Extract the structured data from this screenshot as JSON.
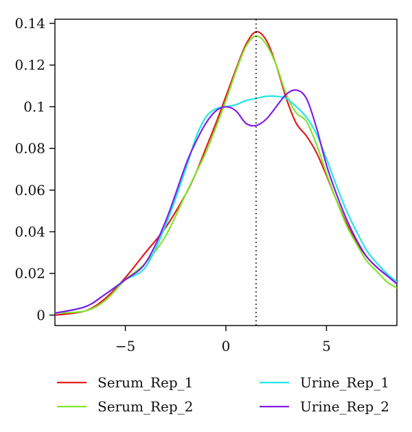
{
  "chart_data": {
    "type": "line",
    "title": "",
    "xlabel": "",
    "ylabel": "",
    "xlim": [
      -8.5,
      8.5
    ],
    "ylim": [
      -0.005,
      0.142
    ],
    "x_ticks": [
      -5,
      0,
      5
    ],
    "x_tick_labels": [
      "−5",
      "0",
      "5"
    ],
    "y_ticks": [
      0,
      0.02,
      0.04,
      0.06,
      0.08,
      0.1,
      0.12,
      0.14
    ],
    "y_tick_labels": [
      "0",
      "0.02",
      "0.04",
      "0.06",
      "0.08",
      "0.1",
      "0.12",
      "0.14"
    ],
    "grid": false,
    "legend_position": "bottom",
    "reference_line": {
      "x": 1.5,
      "style": "dotted"
    },
    "series": [
      {
        "name": "Serum_Rep_1",
        "color": "#e41a1c",
        "points": [
          [
            -8.5,
            0.0
          ],
          [
            -7,
            0.002
          ],
          [
            -6,
            0.008
          ],
          [
            -5,
            0.018
          ],
          [
            -4,
            0.03
          ],
          [
            -3,
            0.042
          ],
          [
            -2,
            0.058
          ],
          [
            -1.5,
            0.068
          ],
          [
            -1,
            0.08
          ],
          [
            -0.5,
            0.092
          ],
          [
            0,
            0.105
          ],
          [
            0.5,
            0.118
          ],
          [
            1,
            0.13
          ],
          [
            1.5,
            0.136
          ],
          [
            2,
            0.132
          ],
          [
            2.5,
            0.12
          ],
          [
            3,
            0.104
          ],
          [
            3.5,
            0.092
          ],
          [
            4,
            0.086
          ],
          [
            4.5,
            0.078
          ],
          [
            5,
            0.067
          ],
          [
            5.5,
            0.055
          ],
          [
            6,
            0.044
          ],
          [
            6.5,
            0.035
          ],
          [
            7,
            0.028
          ],
          [
            7.5,
            0.023
          ],
          [
            8,
            0.019
          ],
          [
            8.5,
            0.015
          ]
        ]
      },
      {
        "name": "Serum_Rep_2",
        "color": "#7fe52c",
        "points": [
          [
            -8.5,
            0.001
          ],
          [
            -7,
            0.002
          ],
          [
            -6,
            0.007
          ],
          [
            -5,
            0.017
          ],
          [
            -4,
            0.025
          ],
          [
            -3,
            0.038
          ],
          [
            -2,
            0.058
          ],
          [
            -1.5,
            0.068
          ],
          [
            -1,
            0.078
          ],
          [
            -0.5,
            0.09
          ],
          [
            0,
            0.103
          ],
          [
            0.5,
            0.117
          ],
          [
            1,
            0.129
          ],
          [
            1.5,
            0.134
          ],
          [
            2,
            0.13
          ],
          [
            2.5,
            0.12
          ],
          [
            3,
            0.106
          ],
          [
            3.5,
            0.097
          ],
          [
            4,
            0.093
          ],
          [
            4.5,
            0.082
          ],
          [
            5,
            0.068
          ],
          [
            5.5,
            0.055
          ],
          [
            6,
            0.043
          ],
          [
            6.5,
            0.034
          ],
          [
            7,
            0.026
          ],
          [
            7.5,
            0.021
          ],
          [
            8,
            0.016
          ],
          [
            8.5,
            0.013
          ]
        ]
      },
      {
        "name": "Urine_Rep_1",
        "color": "#22e6e6",
        "points": [
          [
            -8.5,
            0.001
          ],
          [
            -7,
            0.004
          ],
          [
            -6,
            0.01
          ],
          [
            -5,
            0.017
          ],
          [
            -4,
            0.023
          ],
          [
            -3,
            0.043
          ],
          [
            -2,
            0.07
          ],
          [
            -1.5,
            0.085
          ],
          [
            -1,
            0.095
          ],
          [
            -0.5,
            0.099
          ],
          [
            0,
            0.1
          ],
          [
            0.5,
            0.101
          ],
          [
            1,
            0.103
          ],
          [
            1.5,
            0.104
          ],
          [
            2,
            0.105
          ],
          [
            2.5,
            0.105
          ],
          [
            3,
            0.104
          ],
          [
            3.5,
            0.1
          ],
          [
            4,
            0.095
          ],
          [
            4.5,
            0.087
          ],
          [
            5,
            0.075
          ],
          [
            5.5,
            0.062
          ],
          [
            6,
            0.05
          ],
          [
            6.5,
            0.04
          ],
          [
            7,
            0.031
          ],
          [
            7.5,
            0.025
          ],
          [
            8,
            0.02
          ],
          [
            8.5,
            0.016
          ]
        ]
      },
      {
        "name": "Urine_Rep_2",
        "color": "#7f1de8",
        "points": [
          [
            -8.5,
            0.001
          ],
          [
            -7,
            0.004
          ],
          [
            -6,
            0.01
          ],
          [
            -5,
            0.017
          ],
          [
            -4,
            0.025
          ],
          [
            -3,
            0.045
          ],
          [
            -2,
            0.072
          ],
          [
            -1.5,
            0.083
          ],
          [
            -1,
            0.092
          ],
          [
            -0.5,
            0.098
          ],
          [
            0,
            0.1
          ],
          [
            0.5,
            0.098
          ],
          [
            1,
            0.092
          ],
          [
            1.5,
            0.091
          ],
          [
            2,
            0.094
          ],
          [
            2.5,
            0.1
          ],
          [
            3,
            0.106
          ],
          [
            3.5,
            0.108
          ],
          [
            4,
            0.104
          ],
          [
            4.5,
            0.09
          ],
          [
            5,
            0.072
          ],
          [
            5.5,
            0.058
          ],
          [
            6,
            0.046
          ],
          [
            6.5,
            0.036
          ],
          [
            7,
            0.028
          ],
          [
            7.5,
            0.023
          ],
          [
            8,
            0.019
          ],
          [
            8.5,
            0.015
          ]
        ]
      }
    ]
  }
}
